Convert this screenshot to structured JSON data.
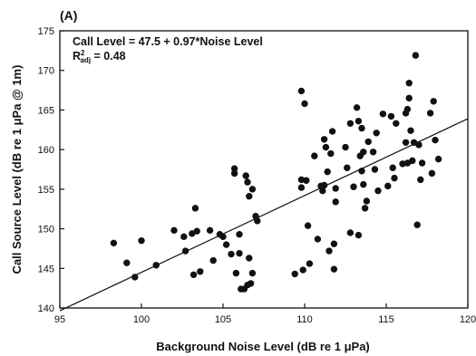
{
  "chart_data": {
    "type": "scatter",
    "panel_label": "(A)",
    "xlabel": "Background Noise Level (dB re 1 μPa)",
    "ylabel": "Call Source Level (dB re 1 μPa @ 1m)",
    "xlim": [
      95,
      120
    ],
    "ylim": [
      140,
      175
    ],
    "xticks": [
      95,
      100,
      105,
      110,
      115,
      120
    ],
    "yticks": [
      140,
      145,
      150,
      155,
      160,
      165,
      170,
      175
    ],
    "grid": false,
    "annotation": {
      "equation": "Call Level = 47.5 + 0.97*Noise Level",
      "r2_prefix": "R",
      "r2_sup": "2",
      "r2_sub": "adj",
      "r2_value": " = 0.48"
    },
    "regression": {
      "intercept": 47.5,
      "slope": 0.97
    },
    "points": [
      [
        98.3,
        148.2
      ],
      [
        99.1,
        145.7
      ],
      [
        99.6,
        143.9
      ],
      [
        100.0,
        148.5
      ],
      [
        100.9,
        145.4
      ],
      [
        102.0,
        149.8
      ],
      [
        102.6,
        149.0
      ],
      [
        102.7,
        147.2
      ],
      [
        103.1,
        149.4
      ],
      [
        103.2,
        144.2
      ],
      [
        103.3,
        152.6
      ],
      [
        103.4,
        149.7
      ],
      [
        103.6,
        144.6
      ],
      [
        104.2,
        149.8
      ],
      [
        104.4,
        146.0
      ],
      [
        104.8,
        149.3
      ],
      [
        105.0,
        149.0
      ],
      [
        105.2,
        148.0
      ],
      [
        105.5,
        146.8
      ],
      [
        105.7,
        157.6
      ],
      [
        105.7,
        157.0
      ],
      [
        105.8,
        144.4
      ],
      [
        106.0,
        149.3
      ],
      [
        106.0,
        146.9
      ],
      [
        106.1,
        142.4
      ],
      [
        106.3,
        142.4
      ],
      [
        106.4,
        156.7
      ],
      [
        106.5,
        155.9
      ],
      [
        106.5,
        142.9
      ],
      [
        106.6,
        154.1
      ],
      [
        106.6,
        146.3
      ],
      [
        106.7,
        143.1
      ],
      [
        106.8,
        144.4
      ],
      [
        106.8,
        155.0
      ],
      [
        107.0,
        151.6
      ],
      [
        107.1,
        151.0
      ],
      [
        109.4,
        144.3
      ],
      [
        109.8,
        167.4
      ],
      [
        109.8,
        156.2
      ],
      [
        109.8,
        155.2
      ],
      [
        109.9,
        144.8
      ],
      [
        110.0,
        165.8
      ],
      [
        110.1,
        156.1
      ],
      [
        110.2,
        150.4
      ],
      [
        110.3,
        145.6
      ],
      [
        110.6,
        159.2
      ],
      [
        110.8,
        148.7
      ],
      [
        111.0,
        155.4
      ],
      [
        111.1,
        154.8
      ],
      [
        111.2,
        155.5
      ],
      [
        111.2,
        161.3
      ],
      [
        111.3,
        160.3
      ],
      [
        111.4,
        157.2
      ],
      [
        111.5,
        147.2
      ],
      [
        111.6,
        159.5
      ],
      [
        111.7,
        162.3
      ],
      [
        111.8,
        148.1
      ],
      [
        111.8,
        144.9
      ],
      [
        111.9,
        153.4
      ],
      [
        111.9,
        155.1
      ],
      [
        112.5,
        160.3
      ],
      [
        112.6,
        157.7
      ],
      [
        112.8,
        163.3
      ],
      [
        112.8,
        149.5
      ],
      [
        113.0,
        155.3
      ],
      [
        113.2,
        165.3
      ],
      [
        113.3,
        149.2
      ],
      [
        113.3,
        163.6
      ],
      [
        113.4,
        159.2
      ],
      [
        113.5,
        162.7
      ],
      [
        113.5,
        157.3
      ],
      [
        113.6,
        155.6
      ],
      [
        113.6,
        159.7
      ],
      [
        113.7,
        152.6
      ],
      [
        113.8,
        153.5
      ],
      [
        113.9,
        161.0
      ],
      [
        114.2,
        159.7
      ],
      [
        114.3,
        157.5
      ],
      [
        114.4,
        162.1
      ],
      [
        114.5,
        154.8
      ],
      [
        114.8,
        164.5
      ],
      [
        115.1,
        155.4
      ],
      [
        115.3,
        164.2
      ],
      [
        115.4,
        157.7
      ],
      [
        115.5,
        156.4
      ],
      [
        115.6,
        163.3
      ],
      [
        116.0,
        158.2
      ],
      [
        116.2,
        164.6
      ],
      [
        116.2,
        160.9
      ],
      [
        116.3,
        158.3
      ],
      [
        116.3,
        165.1
      ],
      [
        116.4,
        168.4
      ],
      [
        116.4,
        166.5
      ],
      [
        116.5,
        162.4
      ],
      [
        116.6,
        158.6
      ],
      [
        116.7,
        160.9
      ],
      [
        116.8,
        171.9
      ],
      [
        116.9,
        150.5
      ],
      [
        117.0,
        160.6
      ],
      [
        117.1,
        156.2
      ],
      [
        117.2,
        158.3
      ],
      [
        117.7,
        164.6
      ],
      [
        117.8,
        157.0
      ],
      [
        117.9,
        166.1
      ],
      [
        118.0,
        161.2
      ],
      [
        118.2,
        158.8
      ]
    ]
  }
}
